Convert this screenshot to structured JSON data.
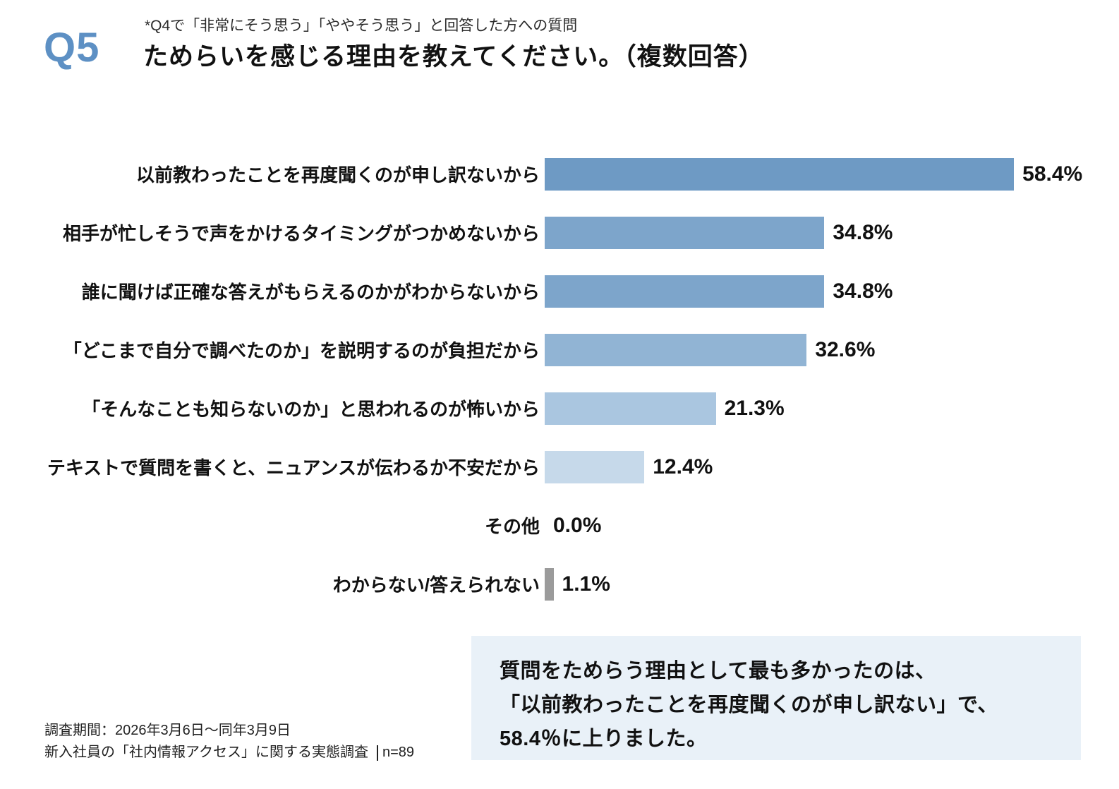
{
  "header": {
    "q_label": "Q5",
    "note": "*Q4で「非常にそう思う」「ややそう思う」と回答した方への質問",
    "title": "ためらいを感じる理由を教えてください。（複数回答）"
  },
  "chart_data": {
    "type": "bar",
    "orientation": "horizontal",
    "title": "ためらいを感じる理由を教えてください。（複数回答）",
    "unit": "%",
    "xlim": [
      0,
      60
    ],
    "grid": false,
    "legend": false,
    "categories": [
      "以前教わったことを再度聞くのが申し訳ないから",
      "相手が忙しそうで声をかけるタイミングがつかめないから",
      "誰に聞けば正確な答えがもらえるのかがわからないから",
      "「どこまで自分で調べたのか」を説明するのが負担だから",
      "「そんなことも知らないのか」と思われるのが怖いから",
      "テキストで質問を書くと、ニュアンスが伝わるか不安だから",
      "その他",
      "わからない/答えられない"
    ],
    "values": [
      58.4,
      34.8,
      34.8,
      32.6,
      21.3,
      12.4,
      0.0,
      1.1
    ],
    "value_labels": [
      "58.4%",
      "34.8%",
      "34.8%",
      "32.6%",
      "21.3%",
      "12.4%",
      "0.0%",
      "1.1%"
    ],
    "bar_colors": [
      "#6e9ac4",
      "#7da5cb",
      "#7da5cb",
      "#91b4d4",
      "#aac6e0",
      "#c6d9ea",
      "transparent",
      "#9b9b9b"
    ]
  },
  "footer": {
    "line1": "調査期間：2026年3月6日～同年3月9日",
    "line2": "新入社員の「社内情報アクセス」に関する実態調査",
    "n_label": "n=89"
  },
  "callout": {
    "bg": "#e9f1f8",
    "lines": [
      "質問をためらう理由として最も多かったのは、",
      "「以前教わったことを再度聞くのが申し訳ない」で、",
      "58.4％に上りました。"
    ]
  },
  "colors": {
    "q_blue": "#5d90c4",
    "text": "#111111",
    "callout_bg": "#e9f1f8",
    "other_bar_gray": "#9b9b9b"
  }
}
